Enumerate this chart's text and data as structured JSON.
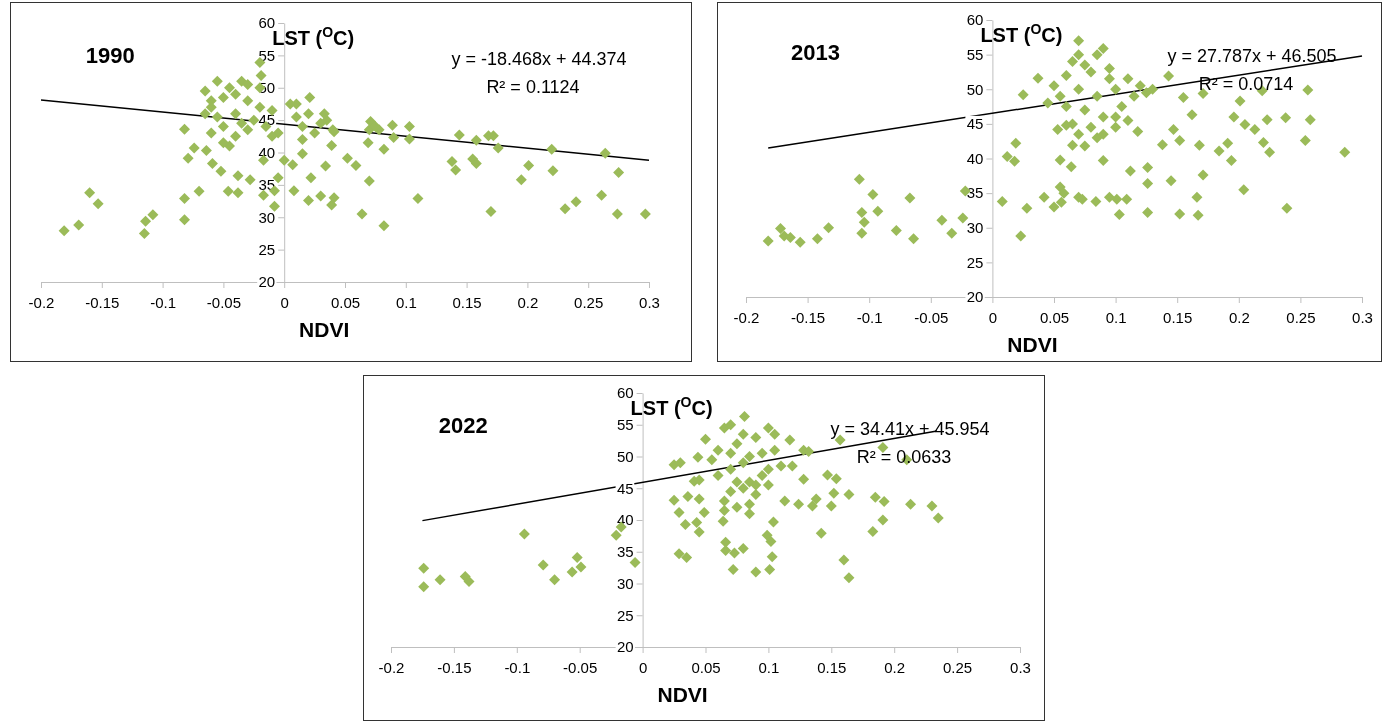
{
  "chart_data": [
    {
      "type": "scatter",
      "title": "1990",
      "xlabel": "NDVI",
      "ylabel": "LST ($^{O}$C)",
      "xlim": [
        -0.2,
        0.3
      ],
      "ylim": [
        20,
        60
      ],
      "xticks": [
        -0.2,
        -0.15,
        -0.1,
        -0.05,
        0,
        0.05,
        0.1,
        0.15,
        0.2,
        0.25,
        0.3
      ],
      "yticks": [
        20,
        25,
        30,
        35,
        40,
        45,
        50,
        55,
        60
      ],
      "grid": false,
      "annotations": [
        "y = -18.468x + 44.374",
        "R² = 0.1124"
      ],
      "series": [
        {
          "type": "scatter",
          "color": "#9bbb59",
          "marker": "diamond",
          "x": [
            -0.181,
            -0.169,
            -0.16,
            -0.153,
            -0.115,
            -0.114,
            -0.108,
            -0.082,
            -0.082,
            -0.082,
            -0.079,
            -0.074,
            -0.07,
            -0.064,
            -0.059,
            -0.052,
            -0.046,
            -0.038,
            -0.038,
            -0.028,
            -0.019,
            -0.02,
            -0.017,
            -0.017,
            -0.008,
            -0.008,
            -0.005,
            0,
            0.007,
            0.008,
            0.015,
            0.021,
            0.022,
            0.02,
            0.034,
            0.03,
            0.033,
            0.039,
            0.041,
            0.039,
            0.041,
            0.052,
            0.059,
            0.064,
            0.07,
            0.071,
            0.069,
            0.078,
            0.082,
            0.082,
            0.089,
            0.09,
            0.103,
            0.103,
            0.11,
            0.138,
            0.141,
            0.144,
            0.155,
            0.158,
            0.158,
            0.168,
            0.172,
            0.17,
            0.176,
            0.195,
            0.201,
            0.22,
            0.221,
            0.231,
            0.24,
            0.261,
            0.264,
            0.274,
            0.275,
            0.297,
            -0.065,
            -0.06,
            -0.055,
            -0.05,
            -0.045,
            -0.04,
            -0.035,
            -0.03,
            -0.025,
            -0.05,
            -0.04,
            -0.06,
            -0.03,
            -0.045,
            -0.055,
            -0.035,
            -0.02,
            -0.065,
            -0.015,
            -0.01,
            0.005,
            0.01,
            0.015,
            0.02,
            0.025,
            0.03,
            0.035,
            -0.005,
            0.01,
            -0.01,
            0.015,
            -0.05,
            -0.04,
            -0.03,
            -0.02,
            -0.06,
            0.04,
            0.07,
            0.075
          ],
          "values": [
            27.9,
            28.8,
            33.8,
            32.1,
            27.5,
            29.4,
            30.4,
            43.6,
            32.9,
            29.6,
            39.1,
            40.7,
            34,
            40.3,
            38.3,
            37.1,
            34,
            36.4,
            33.8,
            35.8,
            51.9,
            53.9,
            38.8,
            33.4,
            31.7,
            34.1,
            36.1,
            38.8,
            38.1,
            34.1,
            39.8,
            48.5,
            36.1,
            32.6,
            37.9,
            33.3,
            46,
            41.1,
            43.2,
            31.9,
            33,
            39.1,
            38,
            30.5,
            35.6,
            44.8,
            41.5,
            43.5,
            40.5,
            28.7,
            44.2,
            42.3,
            44,
            42.1,
            32.9,
            38.6,
            37.3,
            42.7,
            39,
            38.3,
            41.9,
            42.6,
            42.6,
            30.9,
            40.7,
            35.8,
            38,
            40.5,
            37.2,
            31.3,
            32.4,
            33.4,
            39.9,
            30.5,
            36.9,
            30.5,
            49.5,
            47,
            51,
            48.5,
            50,
            46,
            51,
            48,
            45,
            44,
            42.5,
            43,
            43.5,
            41,
            45.5,
            44.5,
            47,
            46,
            44,
            46.5,
            47.5,
            45.5,
            44,
            46,
            43,
            44.5,
            45,
            43,
            47.5,
            42.5,
            42,
            41.5,
            49,
            50.5,
            50,
            48,
            43.5,
            43.5,
            44
          ]
        },
        {
          "type": "line",
          "color": "#000000",
          "x": [
            -0.2,
            0.3
          ],
          "values": [
            48.1,
            38.8
          ]
        }
      ]
    },
    {
      "type": "scatter",
      "title": "2013",
      "xlabel": "NDVI",
      "ylabel": "LST ($^{O}$C)",
      "xlim": [
        -0.2,
        0.3
      ],
      "ylim": [
        20,
        60
      ],
      "xticks": [
        -0.2,
        -0.15,
        -0.1,
        -0.05,
        0,
        0.05,
        0.1,
        0.15,
        0.2,
        0.25,
        0.3
      ],
      "yticks": [
        20,
        25,
        30,
        35,
        40,
        45,
        50,
        55,
        60
      ],
      "grid": false,
      "annotations": [
        "y = 27.787x + 46.505",
        "R² = 0.0714"
      ],
      "series": [
        {
          "type": "scatter",
          "color": "#9bbb59",
          "marker": "diamond",
          "x": [
            -0.182,
            -0.172,
            -0.169,
            -0.164,
            -0.156,
            -0.142,
            -0.133,
            -0.108,
            -0.106,
            -0.104,
            -0.106,
            -0.097,
            -0.093,
            -0.078,
            -0.067,
            -0.064,
            -0.041,
            -0.033,
            -0.024,
            -0.022,
            0.008,
            0.012,
            0.018,
            0.019,
            0.023,
            0.025,
            0.028,
            0.037,
            0.042,
            0.05,
            0.053,
            0.055,
            0.055,
            0.056,
            0.058,
            0.064,
            0.065,
            0.07,
            0.073,
            0.084,
            0.09,
            0.095,
            0.09,
            0.101,
            0.109,
            0.103,
            0.112,
            0.118,
            0.126,
            0.126,
            0.126,
            0.138,
            0.143,
            0.145,
            0.147,
            0.152,
            0.152,
            0.155,
            0.162,
            0.166,
            0.167,
            0.168,
            0.171,
            0.171,
            0.184,
            0.191,
            0.194,
            0.196,
            0.201,
            0.204,
            0.205,
            0.213,
            0.219,
            0.22,
            0.223,
            0.225,
            0.238,
            0.239,
            0.254,
            0.256,
            0.258,
            0.286,
            0.06,
            0.065,
            0.07,
            0.075,
            0.08,
            0.085,
            0.09,
            0.095,
            0.1,
            0.105,
            0.11,
            0.115,
            0.12,
            0.125,
            0.13,
            0.06,
            0.065,
            0.07,
            0.08,
            0.085,
            0.09,
            0.1,
            0.055,
            0.045,
            0.05,
            0.07,
            0.075,
            0.085,
            0.095,
            0.07,
            0.1,
            0.11,
            0.06,
            0.075
          ],
          "values": [
            28.1,
            29.9,
            28.8,
            28.6,
            27.9,
            28.4,
            30,
            37,
            32.2,
            30.8,
            29.2,
            34.8,
            32.4,
            29.6,
            34.3,
            28.4,
            31.1,
            29.2,
            31.4,
            35.3,
            33.8,
            40.3,
            39.6,
            42.2,
            28.8,
            49.2,
            32.8,
            51.6,
            34.4,
            33,
            44.2,
            39.8,
            35.9,
            33.7,
            35,
            38.8,
            41.9,
            34.4,
            34.1,
            33.8,
            39.7,
            34.4,
            55.9,
            34.1,
            34.1,
            31.9,
            38.2,
            43.9,
            38.7,
            36.4,
            32.2,
            42,
            51.9,
            36.8,
            44.2,
            32,
            42.6,
            48.8,
            46.3,
            34.4,
            31.8,
            41.9,
            37.6,
            49.4,
            41.1,
            42.2,
            39.7,
            46,
            48.3,
            35.5,
            44.9,
            44.2,
            49.8,
            42.3,
            45.6,
            40.9,
            45.9,
            32.8,
            42.6,
            49.9,
            45.6,
            40.9,
            52,
            54,
            50,
            47,
            52.5,
            49,
            46,
            53,
            50,
            47.5,
            51.5,
            49,
            50.5,
            49.5,
            50,
            47.5,
            45,
            43.5,
            44.5,
            43,
            43.5,
            44.5,
            49,
            48,
            50.5,
            55,
            53.5,
            55,
            51.5,
            57,
            46,
            45.5,
            44.8,
            41.8
          ]
        },
        {
          "type": "line",
          "color": "#000000",
          "x": [
            -0.182,
            0.3
          ],
          "values": [
            41.5,
            54.8
          ]
        }
      ]
    },
    {
      "type": "scatter",
      "title": "2022",
      "xlabel": "NDVI",
      "ylabel": "LST ($^{O}$C)",
      "xlim": [
        -0.2,
        0.3
      ],
      "ylim": [
        20,
        60
      ],
      "xticks": [
        -0.2,
        -0.15,
        -0.1,
        -0.05,
        0,
        0.05,
        0.1,
        0.15,
        0.2,
        0.25,
        0.3
      ],
      "yticks": [
        20,
        25,
        30,
        35,
        40,
        45,
        50,
        55,
        60
      ],
      "grid": false,
      "annotations": [
        "y = 34.41x + 45.954",
        "R² = 0.0633"
      ],
      "series": [
        {
          "type": "scatter",
          "color": "#9bbb59",
          "marker": "diamond",
          "x": [
            -0.174,
            -0.174,
            -0.161,
            -0.141,
            -0.138,
            -0.094,
            -0.079,
            -0.07,
            -0.056,
            -0.052,
            -0.049,
            -0.021,
            -0.017,
            -0.006,
            0.025,
            0.025,
            0.03,
            0.029,
            0.029,
            0.035,
            0.034,
            0.036,
            0.041,
            0.043,
            0.045,
            0.045,
            0.049,
            0.045,
            0.044,
            0.05,
            0.064,
            0.066,
            0.066,
            0.072,
            0.073,
            0.08,
            0.081,
            0.085,
            0.09,
            0.099,
            0.102,
            0.103,
            0.101,
            0.104,
            0.113,
            0.117,
            0.119,
            0.124,
            0.128,
            0.128,
            0.132,
            0.135,
            0.138,
            0.142,
            0.147,
            0.15,
            0.152,
            0.154,
            0.157,
            0.16,
            0.164,
            0.164,
            0.183,
            0.185,
            0.191,
            0.192,
            0.191,
            0.21,
            0.213,
            0.23,
            0.235,
            0.06,
            0.065,
            0.07,
            0.075,
            0.08,
            0.085,
            0.09,
            0.095,
            0.1,
            0.105,
            0.11,
            0.06,
            0.065,
            0.07,
            0.075,
            0.08,
            0.085,
            0.09,
            0.095,
            0.1,
            0.055,
            0.07,
            0.08,
            0.09,
            0.105,
            0.075,
            0.065,
            0.07,
            0.085,
            0.1
          ],
          "values": [
            32.4,
            29.5,
            30.6,
            31.1,
            30.3,
            37.8,
            32.9,
            30.6,
            31.8,
            34.1,
            32.6,
            37.6,
            38.9,
            33.3,
            43.1,
            48.7,
            49,
            41.2,
            34.7,
            34.1,
            39.3,
            43.7,
            46.1,
            39.6,
            38.1,
            43.3,
            41.2,
            46.3,
            49.9,
            52.7,
            39.8,
            36.5,
            35.2,
            32.2,
            34.8,
            35.5,
            56.3,
            41,
            31.8,
            37.6,
            36.6,
            34.2,
            32.2,
            39.7,
            43,
            52.6,
            48.5,
            42.5,
            51,
            46.4,
            50.8,
            42.2,
            43.3,
            37.9,
            47.1,
            42.2,
            44.2,
            46.5,
            52.6,
            33.7,
            44,
            30.9,
            38.2,
            43.6,
            40,
            42.9,
            51.4,
            49.5,
            42.5,
            42.2,
            40.3,
            51,
            54.5,
            48,
            52,
            45,
            50,
            53,
            47,
            54.5,
            51,
            48.5,
            47,
            43,
            44.5,
            42,
            49,
            46,
            44,
            50.5,
            45.5,
            49.5,
            55,
            53.5,
            45.5,
            53.5,
            46,
            41.5,
            50.5,
            42.5,
            48
          ]
        },
        {
          "type": "line",
          "color": "#000000",
          "x": [
            -0.175,
            0.234
          ],
          "values": [
            39.9,
            54.0
          ]
        }
      ]
    }
  ]
}
